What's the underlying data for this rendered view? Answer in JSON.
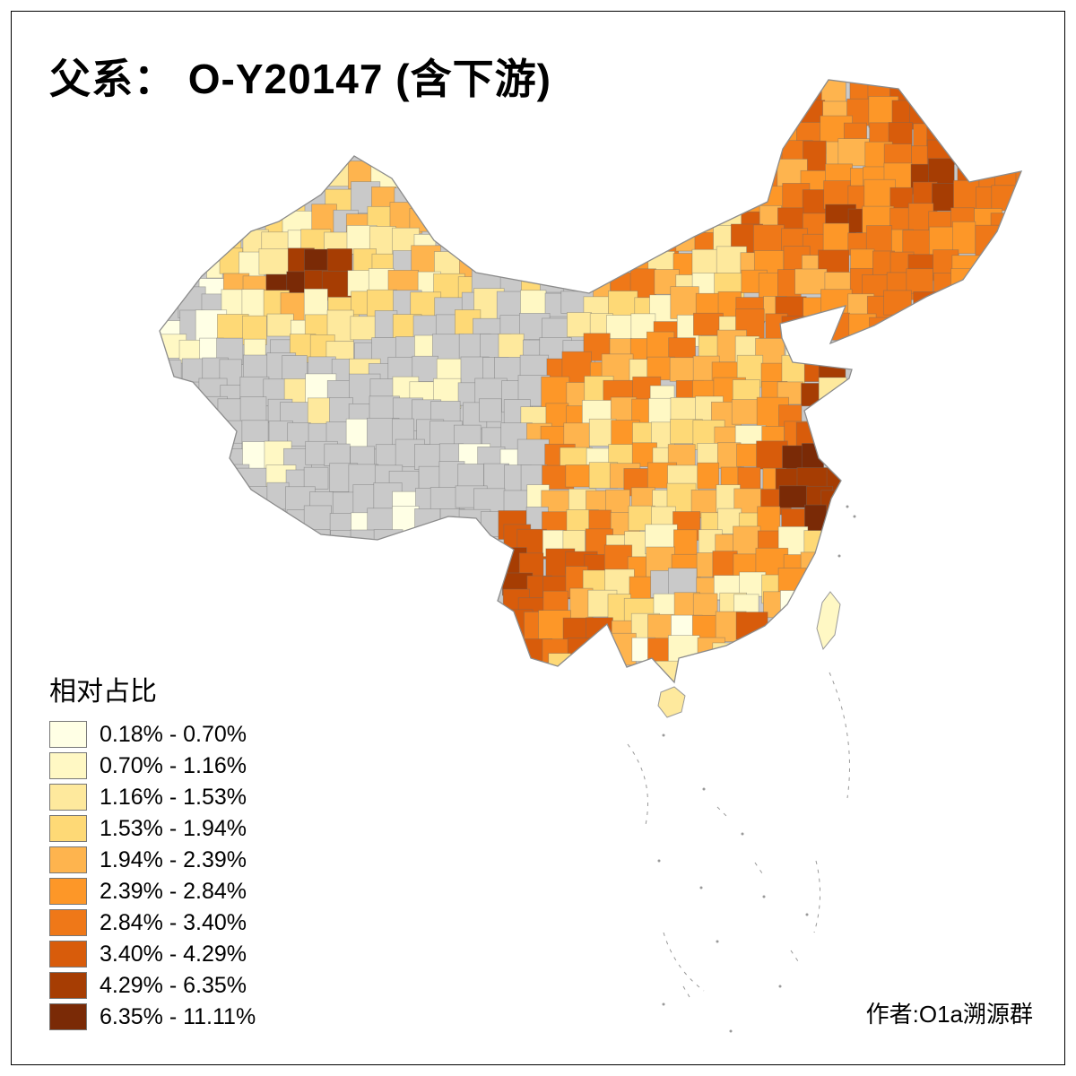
{
  "title": "父系： O-Y20147 (含下游)",
  "author": "作者:O1a溯源群",
  "legend": {
    "title": "相对占比",
    "classes": [
      {
        "label": "0.18% - 0.70%",
        "color": "#FFFFE5"
      },
      {
        "label": "0.70% - 1.16%",
        "color": "#FFF8C4"
      },
      {
        "label": "1.16% - 1.53%",
        "color": "#FEE99D"
      },
      {
        "label": "1.53% - 1.94%",
        "color": "#FED976"
      },
      {
        "label": "1.94% - 2.39%",
        "color": "#FEB44E"
      },
      {
        "label": "2.39% - 2.84%",
        "color": "#FD9728"
      },
      {
        "label": "2.84% - 3.40%",
        "color": "#EF7818"
      },
      {
        "label": "3.40% - 4.29%",
        "color": "#D85C0B"
      },
      {
        "label": "4.29% - 6.35%",
        "color": "#A63D03"
      },
      {
        "label": "6.35% - 11.11%",
        "color": "#7A2A06"
      }
    ]
  },
  "map": {
    "nodata_color": "#C9C9C9",
    "boundary_color": "#8C8C8C",
    "cell_border_color": "rgba(105,105,105,0.5)",
    "sea_feature_color": "#999999",
    "taiwan_color": "#FFF8C4",
    "hainan_color": "#FEE99D"
  }
}
